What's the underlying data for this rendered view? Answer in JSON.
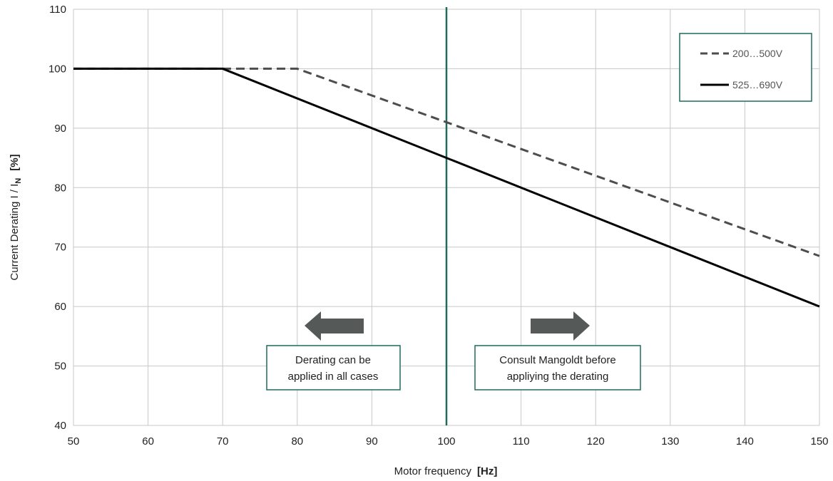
{
  "chart_data": {
    "type": "line",
    "title": "",
    "xlabel": "Motor frequency",
    "xunit": "[Hz]",
    "ylabel_prefix": "Current Derating   I / I",
    "ylabel_sub": "N",
    "yunit": "[%]",
    "xlim": [
      50,
      150
    ],
    "ylim": [
      40,
      110
    ],
    "xticks": [
      50,
      60,
      70,
      80,
      90,
      100,
      110,
      120,
      130,
      140,
      150
    ],
    "yticks": [
      40,
      50,
      60,
      70,
      80,
      90,
      100,
      110
    ],
    "grid": true,
    "legend_position": "top-right",
    "series": [
      {
        "name": "200…500V",
        "style": "dashed",
        "color": "#4d4d4d",
        "x": [
          50,
          80,
          150
        ],
        "y": [
          100,
          100,
          68.5
        ]
      },
      {
        "name": "525…690V",
        "style": "solid",
        "color": "#000000",
        "x": [
          50,
          70,
          150
        ],
        "y": [
          100,
          100,
          60
        ]
      }
    ],
    "reference_line": {
      "x": 100,
      "color": "#1f6b5c"
    },
    "annotations": [
      {
        "lines": [
          "Derating can be",
          "applied in all cases"
        ],
        "arrow": "left"
      },
      {
        "lines": [
          "Consult Mangoldt before",
          "appliying the derating"
        ],
        "arrow": "right"
      }
    ]
  },
  "colors": {
    "grid": "#c8c8c8",
    "accent": "#1f6b5c",
    "arrow": "#555a59"
  }
}
